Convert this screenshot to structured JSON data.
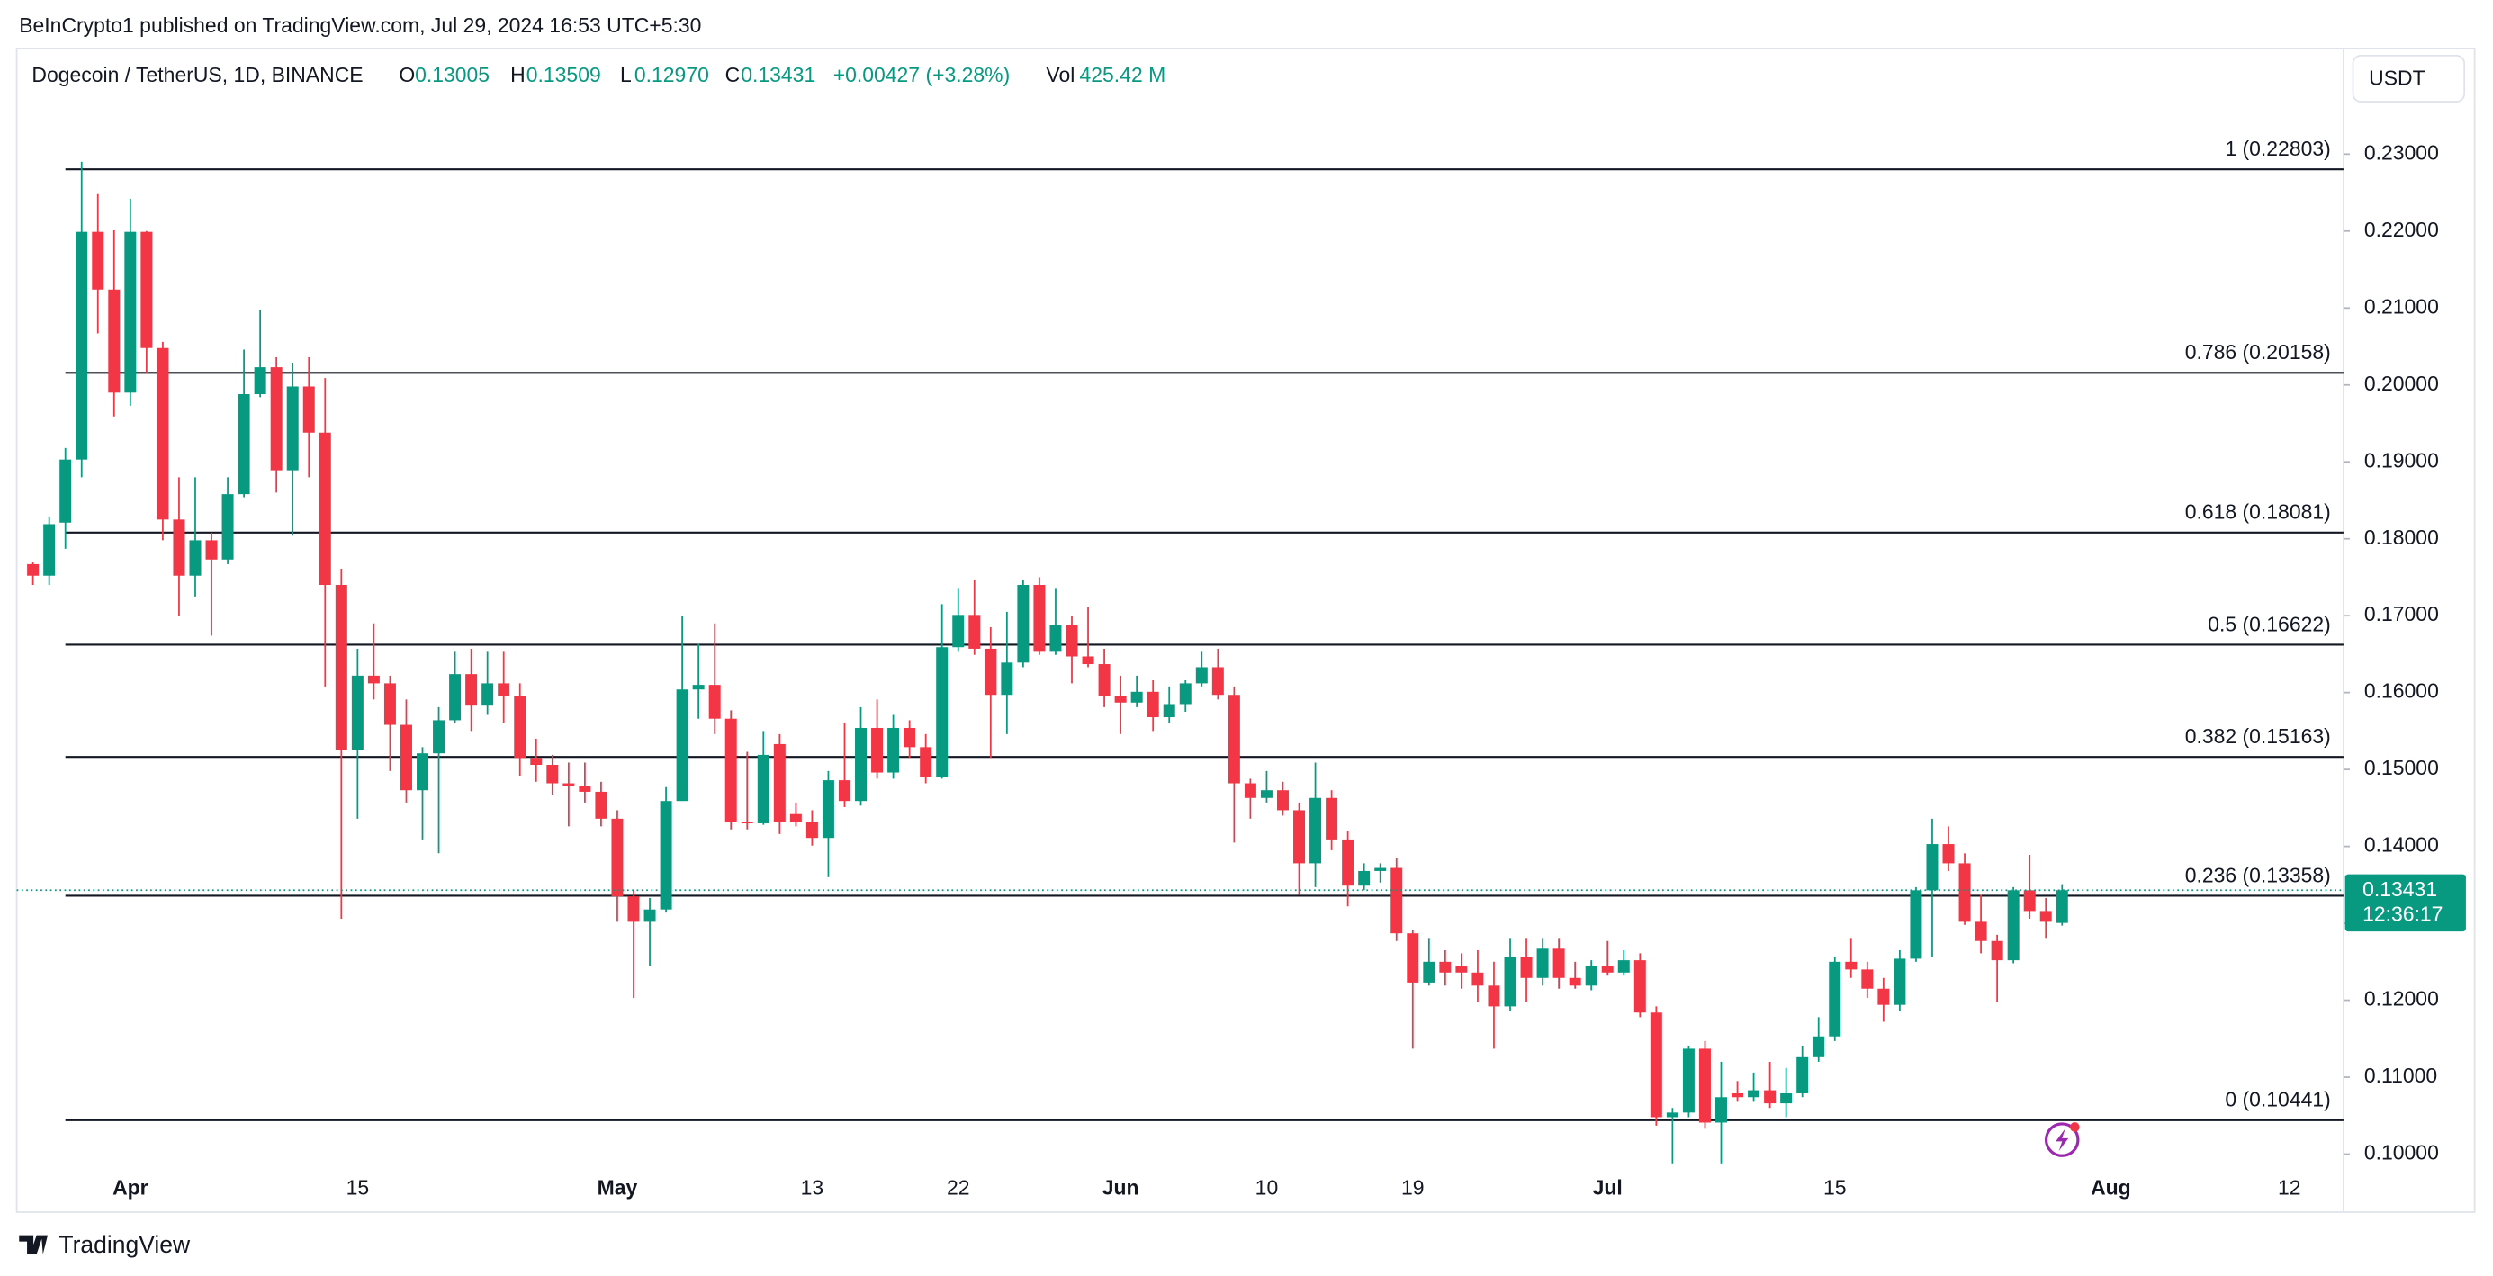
{
  "header": {
    "published": "BeInCrypto1 published on TradingView.com, Jul 29, 2024 16:53 UTC+5:30",
    "symbol": "Dogecoin / TetherUS, 1D, BINANCE",
    "o_label": "O",
    "o": "0.13005",
    "h_label": "H",
    "h": "0.13509",
    "l_label": "L",
    "l": "0.12970",
    "c_label": "C",
    "c": "0.13431",
    "change": "+0.00427 (+3.28%)",
    "vol_label": "Vol",
    "vol": "425.42 M",
    "currency": "USDT",
    "logo": "TradingView"
  },
  "chart_data": {
    "type": "candlestick",
    "up_color": "#089981",
    "down_color": "#f23645",
    "x": [
      "2024-03-26",
      "2024-03-27",
      "2024-03-28",
      "2024-03-29",
      "2024-03-30",
      "2024-03-31",
      "2024-04-01",
      "2024-04-02",
      "2024-04-03",
      "2024-04-04",
      "2024-04-05",
      "2024-04-06",
      "2024-04-07",
      "2024-04-08",
      "2024-04-09",
      "2024-04-10",
      "2024-04-11",
      "2024-04-12",
      "2024-04-13",
      "2024-04-14",
      "2024-04-15",
      "2024-04-16",
      "2024-04-17",
      "2024-04-18",
      "2024-04-19",
      "2024-04-20",
      "2024-04-21",
      "2024-04-22",
      "2024-04-23",
      "2024-04-24",
      "2024-04-25",
      "2024-04-26",
      "2024-04-27",
      "2024-04-28",
      "2024-04-29",
      "2024-04-30",
      "2024-05-01",
      "2024-05-02",
      "2024-05-03",
      "2024-05-04",
      "2024-05-05",
      "2024-05-06",
      "2024-05-07",
      "2024-05-08",
      "2024-05-09",
      "2024-05-10",
      "2024-05-11",
      "2024-05-12",
      "2024-05-13",
      "2024-05-14",
      "2024-05-15",
      "2024-05-16",
      "2024-05-17",
      "2024-05-18",
      "2024-05-19",
      "2024-05-20",
      "2024-05-21",
      "2024-05-22",
      "2024-05-23",
      "2024-05-24",
      "2024-05-25",
      "2024-05-26",
      "2024-05-27",
      "2024-05-28",
      "2024-05-29",
      "2024-05-30",
      "2024-05-31",
      "2024-06-01",
      "2024-06-02",
      "2024-06-03",
      "2024-06-04",
      "2024-06-05",
      "2024-06-06",
      "2024-06-07",
      "2024-06-08",
      "2024-06-09",
      "2024-06-10",
      "2024-06-11",
      "2024-06-12",
      "2024-06-13",
      "2024-06-14",
      "2024-06-15",
      "2024-06-16",
      "2024-06-17",
      "2024-06-18",
      "2024-06-19",
      "2024-06-20",
      "2024-06-21",
      "2024-06-22",
      "2024-06-23",
      "2024-06-24",
      "2024-06-25",
      "2024-06-26",
      "2024-06-27",
      "2024-06-28",
      "2024-06-29",
      "2024-06-30",
      "2024-07-01",
      "2024-07-02",
      "2024-07-03",
      "2024-07-04",
      "2024-07-05",
      "2024-07-06",
      "2024-07-07",
      "2024-07-08",
      "2024-07-09",
      "2024-07-10",
      "2024-07-11",
      "2024-07-12",
      "2024-07-13",
      "2024-07-14",
      "2024-07-15",
      "2024-07-16",
      "2024-07-17",
      "2024-07-18",
      "2024-07-19",
      "2024-07-20",
      "2024-07-21",
      "2024-07-22",
      "2024-07-23",
      "2024-07-24",
      "2024-07-25",
      "2024-07-26",
      "2024-07-27",
      "2024-07-28",
      "2024-07-29"
    ],
    "open": [
      0.1767,
      0.1752,
      0.1821,
      0.1903,
      0.2199,
      0.2124,
      0.199,
      0.2199,
      0.2048,
      0.1825,
      0.1752,
      0.1798,
      0.1773,
      0.1858,
      0.1988,
      0.2023,
      0.1889,
      0.1998,
      0.1938,
      0.174,
      0.1525,
      0.1622,
      0.1612,
      0.1558,
      0.1473,
      0.1521,
      0.1564,
      0.1624,
      0.1583,
      0.1612,
      0.1595,
      0.1515,
      0.1506,
      0.1482,
      0.1478,
      0.1471,
      0.1436,
      0.1335,
      0.1302,
      0.1318,
      0.1459,
      0.1604,
      0.161,
      0.1566,
      0.1432,
      0.143,
      0.1533,
      0.1442,
      0.1432,
      0.1411,
      0.1486,
      0.1459,
      0.1554,
      0.1496,
      0.1554,
      0.1529,
      0.149,
      0.1659,
      0.1701,
      0.1657,
      0.1597,
      0.1639,
      0.174,
      0.1653,
      0.1688,
      0.1647,
      0.1637,
      0.1595,
      0.1587,
      0.1601,
      0.1568,
      0.1585,
      0.1612,
      0.1633,
      0.1597,
      0.1482,
      0.1463,
      0.1473,
      0.1447,
      0.1378,
      0.1463,
      0.1409,
      0.1349,
      0.1368,
      0.1372,
      0.1287,
      0.1223,
      0.125,
      0.1244,
      0.1236,
      0.1219,
      0.1192,
      0.1256,
      0.1229,
      0.1267,
      0.1229,
      0.1219,
      0.1244,
      0.1236,
      0.1252,
      0.1184,
      0.1048,
      0.1054,
      0.1137,
      0.1041,
      0.1079,
      0.1074,
      0.1083,
      0.1066,
      0.1079,
      0.1126,
      0.1153,
      0.125,
      0.124,
      0.1215,
      0.1194,
      0.1254,
      0.1343,
      0.1403,
      0.1378,
      0.1302,
      0.1277,
      0.1252,
      0.1343,
      0.1316,
      0.13005
    ],
    "high": [
      0.177,
      0.1829,
      0.1918,
      0.229,
      0.2248,
      0.2201,
      0.2242,
      0.22,
      0.2056,
      0.188,
      0.188,
      0.1808,
      0.188,
      0.2046,
      0.2097,
      0.2036,
      0.2029,
      0.2036,
      0.2009,
      0.1761,
      0.1657,
      0.169,
      0.1622,
      0.1591,
      0.1529,
      0.1581,
      0.1653,
      0.1657,
      0.1653,
      0.1653,
      0.1612,
      0.154,
      0.1519,
      0.1509,
      0.1509,
      0.1484,
      0.1447,
      0.1343,
      0.1333,
      0.1477,
      0.1699,
      0.1663,
      0.169,
      0.1577,
      0.1523,
      0.155,
      0.1546,
      0.1457,
      0.1447,
      0.1498,
      0.156,
      0.1581,
      0.1591,
      0.1571,
      0.1564,
      0.1546,
      0.1715,
      0.1736,
      0.1746,
      0.1685,
      0.1705,
      0.1746,
      0.175,
      0.1736,
      0.1699,
      0.1711,
      0.1657,
      0.1622,
      0.1622,
      0.1616,
      0.1608,
      0.1616,
      0.1653,
      0.1657,
      0.1608,
      0.1488,
      0.1498,
      0.1484,
      0.1457,
      0.1509,
      0.1473,
      0.142,
      0.1378,
      0.1378,
      0.1385,
      0.1291,
      0.1281,
      0.1265,
      0.1261,
      0.1265,
      0.125,
      0.1281,
      0.1281,
      0.1281,
      0.1281,
      0.125,
      0.1252,
      0.1277,
      0.1265,
      0.1261,
      0.1192,
      0.106,
      0.1141,
      0.1147,
      0.112,
      0.1095,
      0.1106,
      0.112,
      0.1112,
      0.1141,
      0.1178,
      0.1256,
      0.1281,
      0.125,
      0.1229,
      0.1265,
      0.1347,
      0.1436,
      0.1426,
      0.1391,
      0.1337,
      0.1285,
      0.1347,
      0.1389,
      0.1333,
      0.13509
    ],
    "low": [
      0.174,
      0.174,
      0.1787,
      0.188,
      0.2067,
      0.1959,
      0.1973,
      0.2015,
      0.1798,
      0.1699,
      0.1725,
      0.1674,
      0.1767,
      0.1854,
      0.1984,
      0.186,
      0.1804,
      0.188,
      0.1608,
      0.1306,
      0.1436,
      0.1591,
      0.1498,
      0.1457,
      0.1409,
      0.1391,
      0.156,
      0.155,
      0.1571,
      0.156,
      0.1492,
      0.1484,
      0.1467,
      0.1426,
      0.1457,
      0.1426,
      0.1302,
      0.1203,
      0.1244,
      0.1314,
      0.1459,
      0.1566,
      0.1546,
      0.1422,
      0.1422,
      0.1428,
      0.1416,
      0.1426,
      0.1401,
      0.136,
      0.1451,
      0.1453,
      0.1488,
      0.1488,
      0.1515,
      0.1482,
      0.1488,
      0.1653,
      0.1649,
      0.1515,
      0.1546,
      0.1633,
      0.1649,
      0.1649,
      0.1612,
      0.1633,
      0.1581,
      0.1546,
      0.1581,
      0.155,
      0.156,
      0.1575,
      0.1608,
      0.1591,
      0.1405,
      0.1436,
      0.1457,
      0.144,
      0.1337,
      0.1347,
      0.1395,
      0.1322,
      0.1343,
      0.1353,
      0.1277,
      0.1137,
      0.1219,
      0.1219,
      0.1215,
      0.1198,
      0.1137,
      0.1186,
      0.1198,
      0.1219,
      0.1215,
      0.1215,
      0.1213,
      0.1232,
      0.1232,
      0.1178,
      0.1037,
      0.0988,
      0.1048,
      0.1033,
      0.0988,
      0.1068,
      0.1068,
      0.106,
      0.1048,
      0.1074,
      0.112,
      0.1147,
      0.1229,
      0.1203,
      0.1172,
      0.1186,
      0.125,
      0.1256,
      0.1368,
      0.1298,
      0.1261,
      0.1198,
      0.1248,
      0.1306,
      0.1281,
      0.1297
    ],
    "close": [
      0.1752,
      0.1819,
      0.1903,
      0.2199,
      0.2124,
      0.199,
      0.2199,
      0.2048,
      0.1825,
      0.1752,
      0.1798,
      0.1773,
      0.1858,
      0.1988,
      0.2023,
      0.1889,
      0.1998,
      0.1938,
      0.174,
      0.1525,
      0.1622,
      0.1612,
      0.1558,
      0.1473,
      0.1521,
      0.1564,
      0.1624,
      0.1583,
      0.1612,
      0.1595,
      0.1515,
      0.1506,
      0.1482,
      0.1478,
      0.1471,
      0.1436,
      0.1335,
      0.1302,
      0.1318,
      0.1459,
      0.1604,
      0.161,
      0.1566,
      0.1432,
      0.143,
      0.1519,
      0.1432,
      0.1432,
      0.1411,
      0.1486,
      0.1459,
      0.1554,
      0.1496,
      0.1554,
      0.1529,
      0.149,
      0.1659,
      0.1701,
      0.1657,
      0.1597,
      0.1639,
      0.174,
      0.1653,
      0.1688,
      0.1647,
      0.1637,
      0.1595,
      0.1587,
      0.1601,
      0.1568,
      0.1585,
      0.1612,
      0.1633,
      0.1597,
      0.1482,
      0.1463,
      0.1473,
      0.1447,
      0.1378,
      0.1463,
      0.1409,
      0.1349,
      0.1368,
      0.1372,
      0.1287,
      0.1223,
      0.125,
      0.1236,
      0.1236,
      0.1219,
      0.1192,
      0.1256,
      0.1229,
      0.1267,
      0.1229,
      0.1219,
      0.1244,
      0.1236,
      0.1252,
      0.1184,
      0.1048,
      0.1054,
      0.1137,
      0.1041,
      0.1074,
      0.1074,
      0.1083,
      0.1066,
      0.1079,
      0.1126,
      0.1153,
      0.125,
      0.124,
      0.1215,
      0.1194,
      0.1254,
      0.1343,
      0.1403,
      0.1378,
      0.1302,
      0.1277,
      0.1252,
      0.1343,
      0.1316,
      0.1302,
      0.13431
    ],
    "xlim": [
      "2024-03-25",
      "2024-08-15"
    ],
    "ylim": [
      0.0975,
      0.2375
    ],
    "yticks": [
      {
        "value": 0.1,
        "label": "0.10000"
      },
      {
        "value": 0.11,
        "label": "0.11000"
      },
      {
        "value": 0.12,
        "label": "0.12000"
      },
      {
        "value": 0.13,
        "label": "0.13000"
      },
      {
        "value": 0.14,
        "label": "0.14000"
      },
      {
        "value": 0.15,
        "label": "0.15000"
      },
      {
        "value": 0.16,
        "label": "0.16000"
      },
      {
        "value": 0.17,
        "label": "0.17000"
      },
      {
        "value": 0.18,
        "label": "0.18000"
      },
      {
        "value": 0.19,
        "label": "0.19000"
      },
      {
        "value": 0.2,
        "label": "0.20000"
      },
      {
        "value": 0.21,
        "label": "0.21000"
      },
      {
        "value": 0.22,
        "label": "0.22000"
      },
      {
        "value": 0.23,
        "label": "0.23000"
      }
    ],
    "xticks": [
      {
        "value": "2024-04-01",
        "label": "Apr"
      },
      {
        "value": "2024-04-15",
        "label": "15"
      },
      {
        "value": "2024-05-01",
        "label": "May"
      },
      {
        "value": "2024-05-13",
        "label": "13"
      },
      {
        "value": "2024-05-22",
        "label": "22"
      },
      {
        "value": "2024-06-01",
        "label": "Jun"
      },
      {
        "value": "2024-06-10",
        "label": "10"
      },
      {
        "value": "2024-06-19",
        "label": "19"
      },
      {
        "value": "2024-07-01",
        "label": "Jul"
      },
      {
        "value": "2024-07-15",
        "label": "15"
      },
      {
        "value": "2024-08-01",
        "label": "Aug"
      },
      {
        "value": "2024-08-12",
        "label": "12"
      }
    ],
    "fib_levels": [
      {
        "value": 0.22803,
        "label": "1 (0.22803)"
      },
      {
        "value": 0.20158,
        "label": "0.786 (0.20158)"
      },
      {
        "value": 0.18081,
        "label": "0.618 (0.18081)"
      },
      {
        "value": 0.16622,
        "label": "0.5 (0.16622)"
      },
      {
        "value": 0.15163,
        "label": "0.382 (0.15163)"
      },
      {
        "value": 0.13358,
        "label": "0.236 (0.13358)"
      },
      {
        "value": 0.10441,
        "label": "0 (0.10441)"
      }
    ],
    "last_price": {
      "value": 0.13431,
      "label": "0.13431",
      "countdown": "12:36:17"
    }
  }
}
